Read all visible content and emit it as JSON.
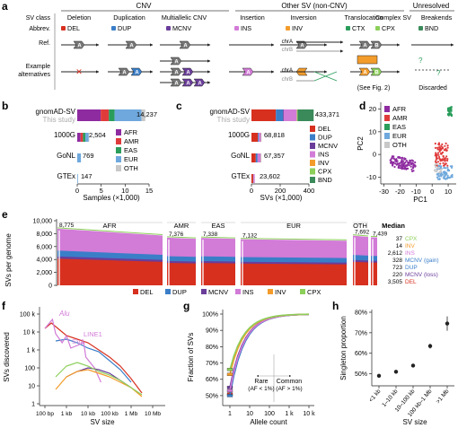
{
  "colors": {
    "DEL": "#d7301f",
    "DUP": "#3a7ec8",
    "MCNV": "#6a3d9a",
    "INS": "#d27bd7",
    "INV": "#f39c2b",
    "CTX": "#2a9d5b",
    "CPX": "#8ccf5a",
    "BND": "#3a8a5a",
    "AFR": "#8e2ba0",
    "AMR": "#e03b3b",
    "EAS": "#2a9d5b",
    "EUR": "#6fa8dc",
    "OTH": "#c8c8c8"
  },
  "panel_a": {
    "letter": "a",
    "groups": [
      "CNV",
      "Other SV (non-CNV)",
      "Unresolved"
    ],
    "rows": {
      "class": "SV class",
      "abbrev": "Abbrev.",
      "ref": "Ref.",
      "alt": "Example alternatives"
    },
    "classes": [
      {
        "name": "Deletion",
        "abbrev": "DEL"
      },
      {
        "name": "Duplication",
        "abbrev": "DUP"
      },
      {
        "name": "Multiallelic CNV",
        "abbrev": "MCNV"
      },
      {
        "name": "Insertion",
        "abbrev": "INS"
      },
      {
        "name": "Inversion",
        "abbrev": "INV"
      },
      {
        "name": "Translocation",
        "abbrev": "CTX"
      },
      {
        "name": "Complex SV",
        "abbrev": "CPX"
      },
      {
        "name": "Breakends",
        "abbrev": "BND"
      }
    ],
    "chrA": "chrA",
    "chrB": "chrB",
    "see_fig": "(See Fig. 2)",
    "discarded": "Discarded"
  },
  "panel_b": {
    "letter": "b",
    "xlabel": "Samples (×1,000)",
    "ticks": [
      0,
      5,
      10,
      15
    ],
    "labels": [
      "gnomAD-SV",
      "This study",
      "1000G",
      "GoNL",
      "GTEx"
    ],
    "values": [
      "14,237",
      "2,504",
      "769",
      "147"
    ],
    "legend": [
      "AFR",
      "AMR",
      "EAS",
      "EUR",
      "OTH"
    ]
  },
  "panel_c": {
    "letter": "c",
    "xlabel": "SVs (×1,000)",
    "ticks": [
      0,
      200,
      400
    ],
    "labels": [
      "gnomAD-SV",
      "This study",
      "1000G",
      "GoNL",
      "GTEx"
    ],
    "values": [
      "433,371",
      "68,818",
      "67,357",
      "23,602"
    ],
    "legend": [
      "DEL",
      "DUP",
      "MCNV",
      "INS",
      "INV",
      "CPX",
      "BND"
    ]
  },
  "panel_d": {
    "letter": "d",
    "xlabel": "PC1",
    "ylabel": "PC2",
    "xticks": [
      -30,
      -20,
      -10,
      0,
      10
    ],
    "yticks": [
      -10,
      0,
      10,
      20
    ],
    "legend": [
      "AFR",
      "AMR",
      "EAS",
      "EUR",
      "OTH"
    ]
  },
  "panel_e": {
    "letter": "e",
    "ylabel": "SVs per genome",
    "yticks": [
      "0",
      "2,000",
      "4,000",
      "6,000",
      "8,000",
      "10,000"
    ],
    "pops": [
      "AFR",
      "AMR",
      "EAS",
      "EUR",
      "OTH",
      "Median"
    ],
    "pop_peaks": [
      "8,775",
      "7,376",
      "7,338",
      "7,132",
      "7,692",
      "7,439"
    ],
    "median": [
      {
        "v": "37",
        "k": "CPX"
      },
      {
        "v": "14",
        "k": "INV"
      },
      {
        "v": "2,612",
        "k": "INS"
      },
      {
        "v": "328",
        "k": "MCNV (gain)"
      },
      {
        "v": "723",
        "k": "DUP"
      },
      {
        "v": "220",
        "k": "MCNV (loss)"
      },
      {
        "v": "3,505",
        "k": "DEL"
      }
    ],
    "legend": [
      "DEL",
      "DUP",
      "MCNV",
      "INS",
      "INV",
      "CPX"
    ]
  },
  "panel_f": {
    "letter": "f",
    "ylabel": "SVs discovered",
    "xlabel": "SV size",
    "yticks": [
      "1",
      "10",
      "100",
      "1 k",
      "10 k",
      "100 k"
    ],
    "xticks": [
      "100 bp",
      "1 kb",
      "10 kb",
      "100 kb",
      "1 Mb",
      "10 Mb"
    ],
    "annotations": [
      "Alu",
      "SVA",
      "LINE1"
    ]
  },
  "panel_g": {
    "letter": "g",
    "ylabel": "Fraction of SVs",
    "xlabel": "Allele count",
    "yticks": [
      "50%",
      "60%",
      "70%",
      "80%",
      "90%",
      "100%"
    ],
    "xticks": [
      "1",
      "10",
      "100",
      "1 k",
      "10 k"
    ],
    "rare": "Rare",
    "rare_sub": "(AF < 1%)",
    "common": "Common",
    "common_sub": "(AF > 1%)"
  },
  "panel_h": {
    "letter": "h",
    "ylabel": "Singleton proportion",
    "xlabel": "SV size",
    "yticks": [
      "50%",
      "60%",
      "70%",
      "80%"
    ],
    "categories": [
      "<1 kb",
      "1–10 kb",
      "10–100 kb",
      "100 kb–1 Mb",
      ">1 Mb"
    ],
    "values": [
      0.49,
      0.51,
      0.54,
      0.635,
      0.745
    ]
  }
}
